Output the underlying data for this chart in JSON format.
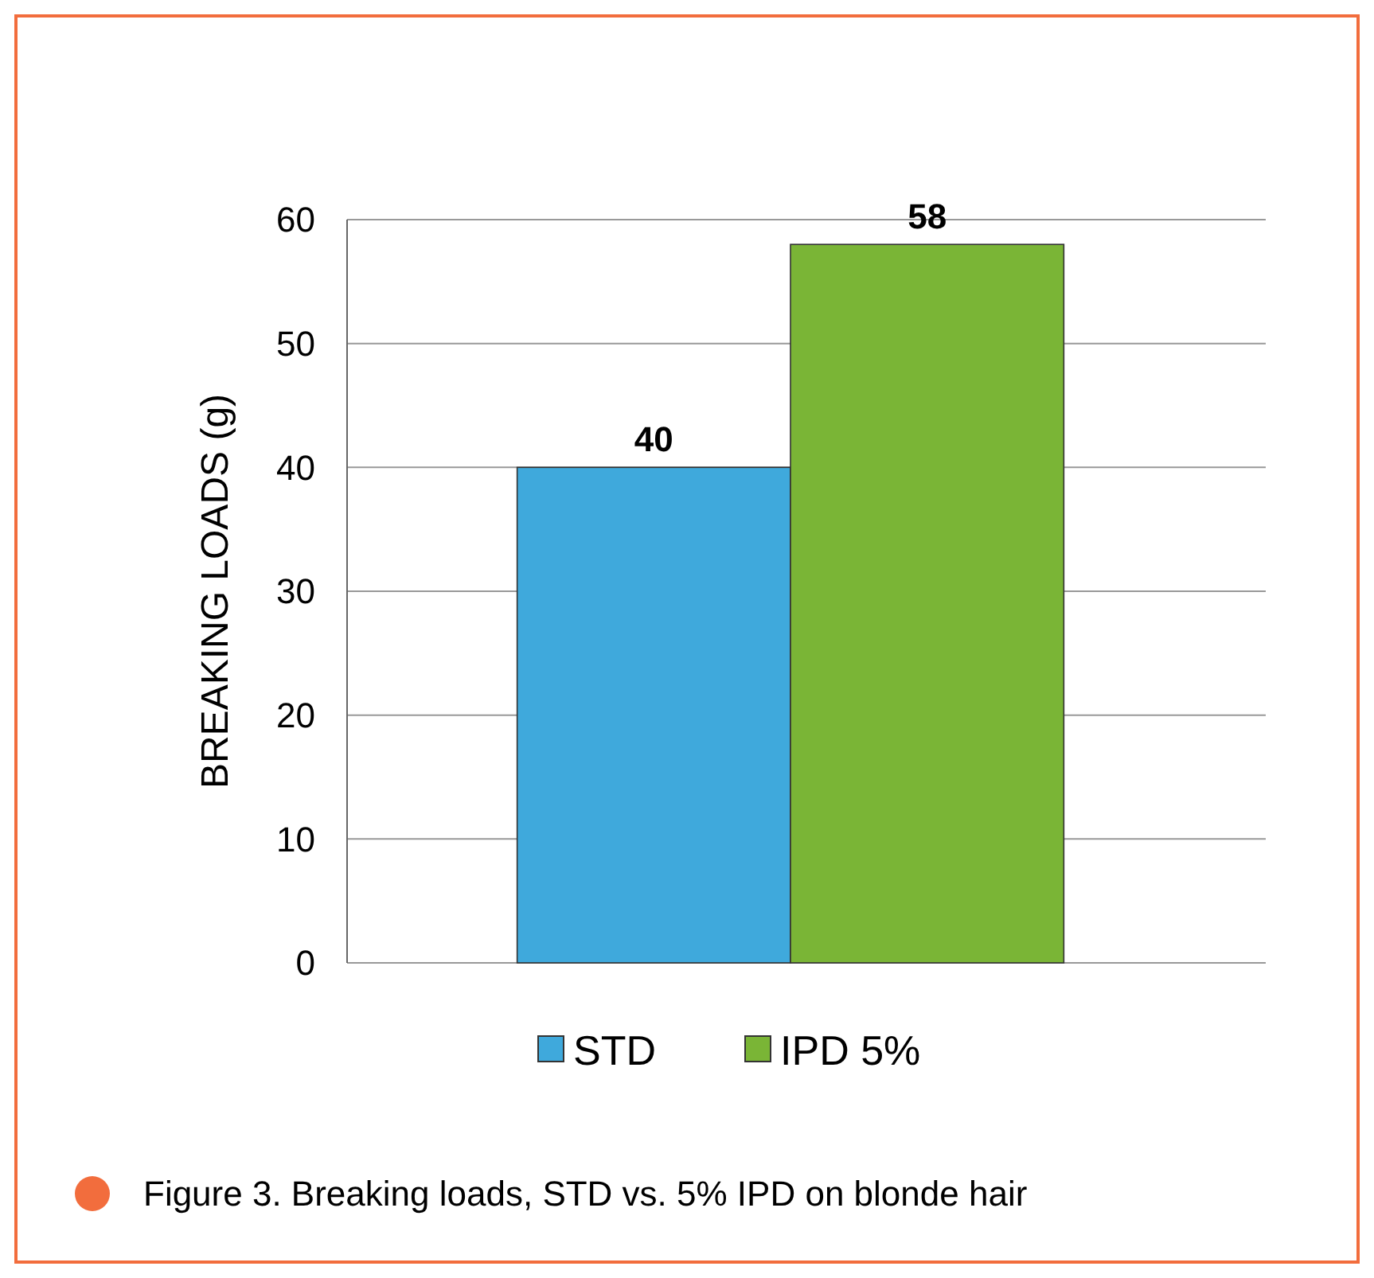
{
  "chart_data": {
    "type": "bar",
    "ylabel": "BREAKING LOADS (g)",
    "categories": [
      null
    ],
    "series": [
      {
        "name": "STD",
        "color": "#3fa9dc",
        "values": [
          40
        ]
      },
      {
        "name": "IPD 5%",
        "color": "#7ab536",
        "values": [
          58
        ]
      }
    ],
    "ylim": [
      0,
      60
    ],
    "yticks": [
      0,
      10,
      20,
      30,
      40,
      50,
      60
    ],
    "grid": "y",
    "legend": "bottom",
    "data_labels": true,
    "annotations": [
      "Figure 3. Breaking loads, STD vs. 5% IPD on blonde hair"
    ]
  }
}
